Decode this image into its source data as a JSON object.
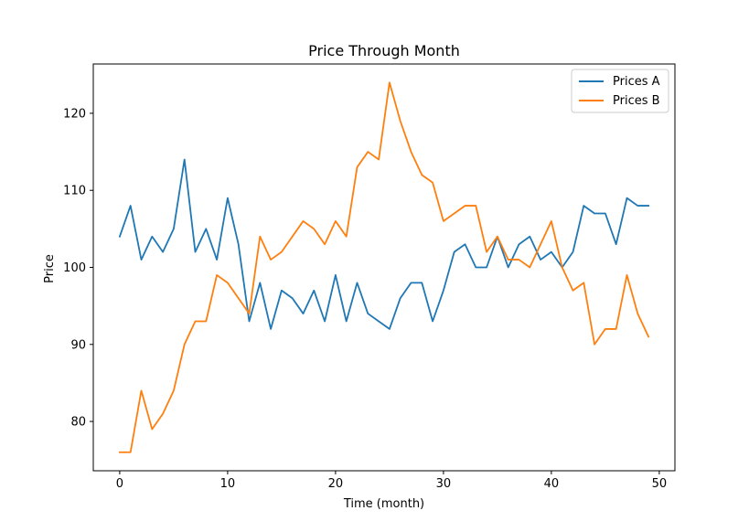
{
  "chart_data": {
    "type": "line",
    "title": "Price Through Month",
    "xlabel": "Time (month)",
    "ylabel": "Price",
    "xlim": [
      -2.45,
      51.45
    ],
    "ylim": [
      73.6,
      126.4
    ],
    "xticks": [
      0,
      10,
      20,
      30,
      40,
      50
    ],
    "yticks": [
      80,
      90,
      100,
      110,
      120
    ],
    "grid": false,
    "legend_position": "top-right",
    "x": [
      0,
      1,
      2,
      3,
      4,
      5,
      6,
      7,
      8,
      9,
      10,
      11,
      12,
      13,
      14,
      15,
      16,
      17,
      18,
      19,
      20,
      21,
      22,
      23,
      24,
      25,
      26,
      27,
      28,
      29,
      30,
      31,
      32,
      33,
      34,
      35,
      36,
      37,
      38,
      39,
      40,
      41,
      42,
      43,
      44,
      45,
      46,
      47,
      48,
      49
    ],
    "series": [
      {
        "name": "Prices A",
        "color": "#1f77b4",
        "values": [
          104,
          108,
          101,
          104,
          102,
          105,
          114,
          102,
          105,
          101,
          109,
          103,
          93,
          98,
          92,
          97,
          96,
          94,
          97,
          93,
          99,
          93,
          98,
          94,
          93,
          92,
          96,
          98,
          98,
          93,
          97,
          102,
          103,
          100,
          100,
          104,
          100,
          103,
          104,
          101,
          102,
          100,
          102,
          108,
          107,
          107,
          103,
          109,
          108,
          108
        ]
      },
      {
        "name": "Prices B",
        "color": "#ff7f0e",
        "values": [
          76,
          76,
          84,
          79,
          81,
          84,
          90,
          93,
          93,
          99,
          98,
          96,
          94,
          104,
          101,
          102,
          104,
          106,
          105,
          103,
          106,
          104,
          113,
          115,
          114,
          124,
          119,
          115,
          112,
          111,
          106,
          107,
          108,
          108,
          102,
          104,
          101,
          101,
          100,
          103,
          106,
          100,
          97,
          98,
          90,
          92,
          92,
          99,
          94,
          91
        ]
      }
    ]
  }
}
